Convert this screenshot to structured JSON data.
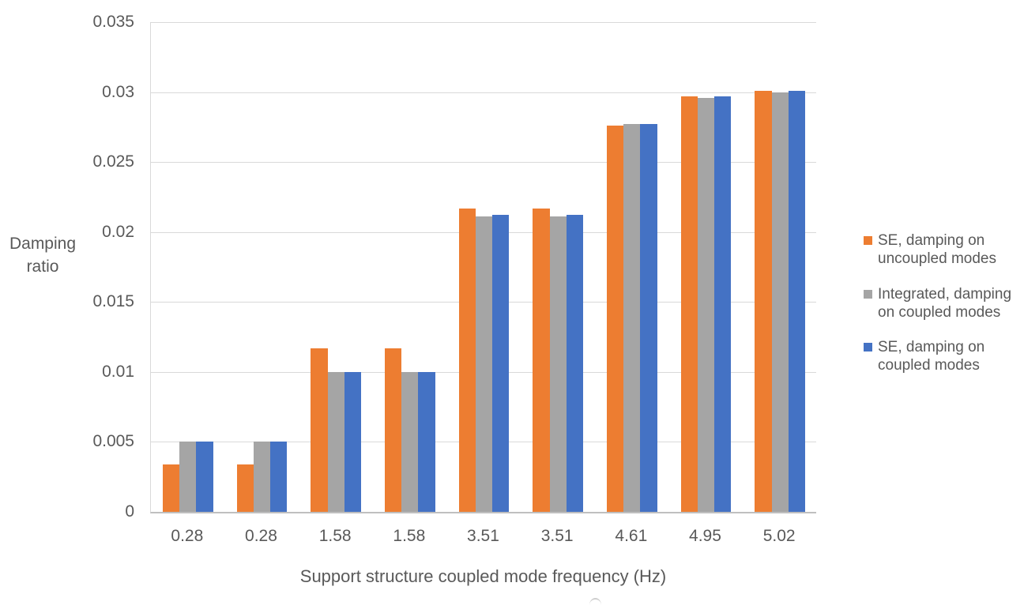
{
  "chart_data": {
    "type": "bar",
    "title": "",
    "categories": [
      "0.28",
      "0.28",
      "1.58",
      "1.58",
      "3.51",
      "3.51",
      "4.61",
      "4.95",
      "5.02"
    ],
    "series": [
      {
        "name": "SE, damping on uncoupled modes",
        "color": "#ED7D31",
        "values": [
          0.0034,
          0.0034,
          0.0117,
          0.0117,
          0.0217,
          0.0217,
          0.0276,
          0.0297,
          0.0301
        ]
      },
      {
        "name": "Integrated, damping on coupled modes",
        "color": "#A5A5A5",
        "values": [
          0.005,
          0.005,
          0.01,
          0.01,
          0.0211,
          0.0211,
          0.0277,
          0.0296,
          0.03
        ]
      },
      {
        "name": "SE, damping on coupled modes",
        "color": "#4472C4",
        "values": [
          0.005,
          0.005,
          0.01,
          0.01,
          0.0212,
          0.0212,
          0.0277,
          0.0297,
          0.0301
        ]
      }
    ],
    "legend_labels": [
      "SE, damping on\nuncoupled modes",
      "Integrated, damping\non coupled modes",
      "SE, damping on\ncoupled modes"
    ],
    "legend_position": "right",
    "xlabel": "Support structure coupled mode frequency (Hz)",
    "ylabel": "Damping\nratio",
    "ylim": [
      0,
      0.035
    ],
    "ytick_step": 0.005,
    "yticks": [
      "0",
      "0.005",
      "0.01",
      "0.015",
      "0.02",
      "0.025",
      "0.03",
      "0.035"
    ],
    "grid": true,
    "text_color": "#595959",
    "gridline_color": "#D9D9D9",
    "axis_line_color": "#BFBFBF"
  }
}
